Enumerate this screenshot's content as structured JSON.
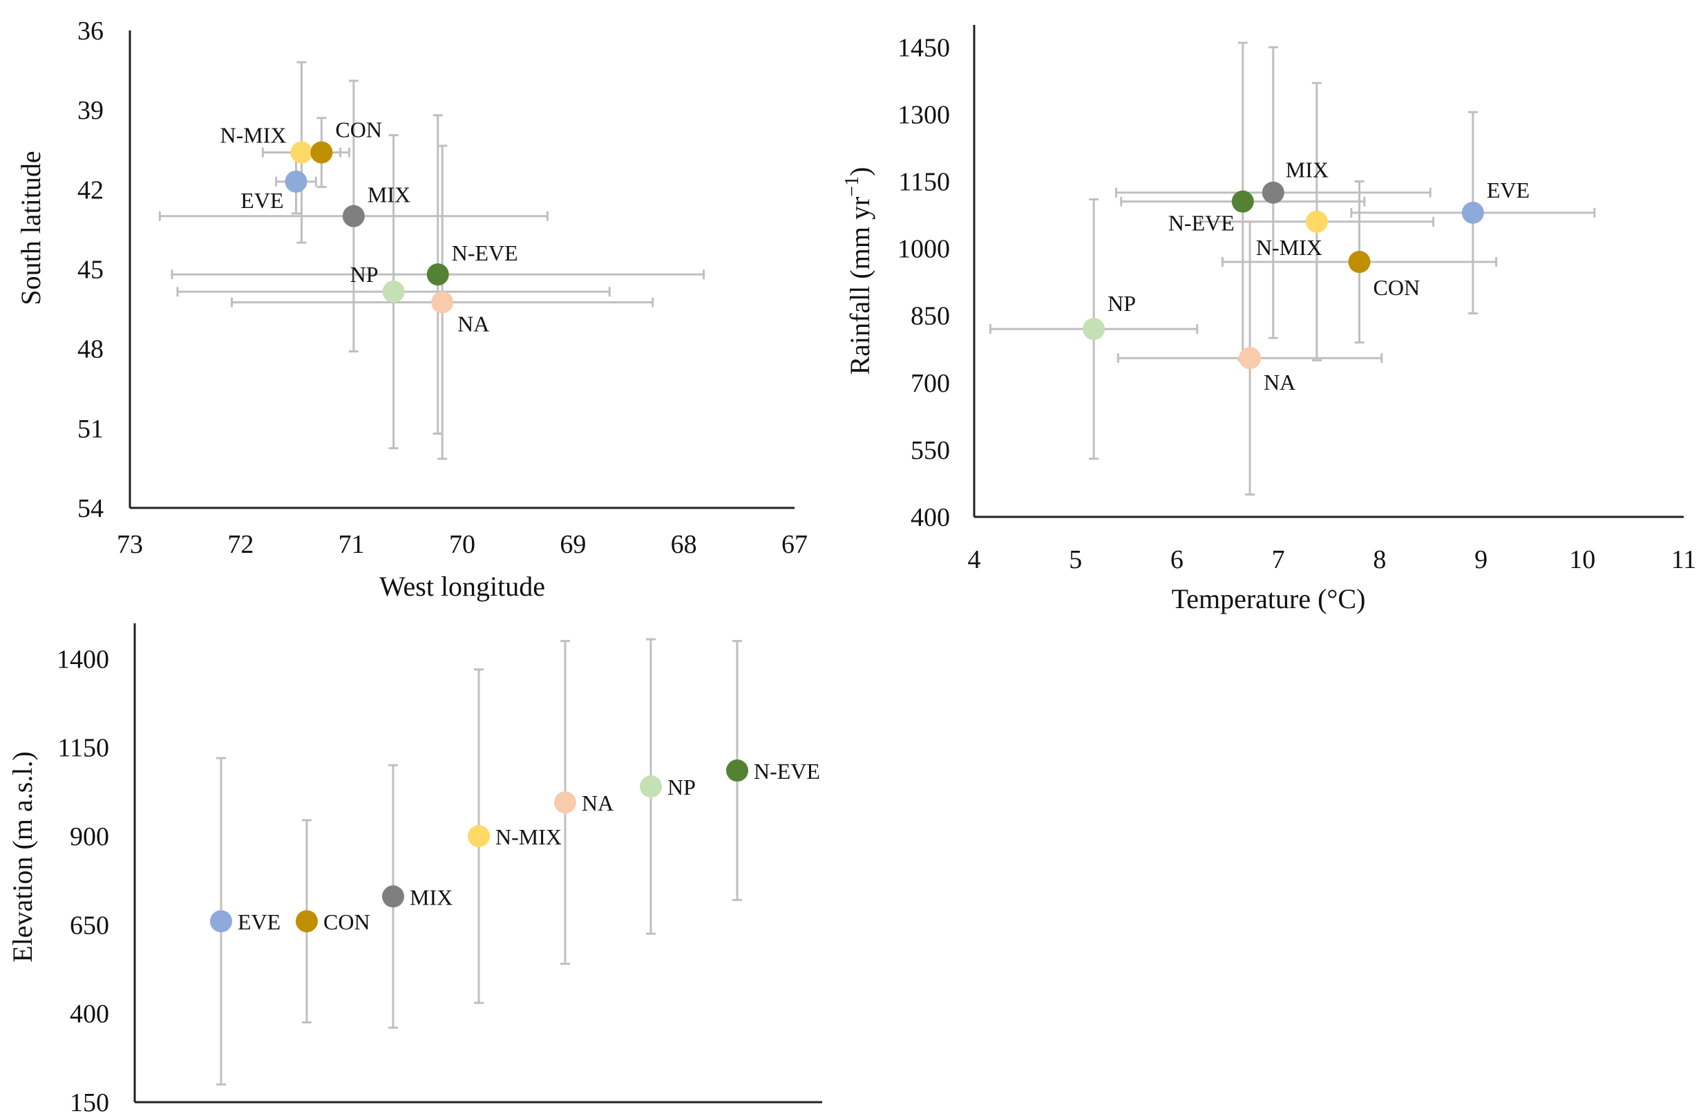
{
  "chart_data": [
    {
      "type": "scatter",
      "title": "",
      "xlabel": "West longitude",
      "ylabel": "South latitude",
      "x_reversed": true,
      "y_reversed": true,
      "xlim": [
        73,
        67
      ],
      "ylim": [
        54,
        36
      ],
      "xticks": [
        "73",
        "72",
        "71",
        "70",
        "69",
        "68",
        "67"
      ],
      "yticks": [
        "36",
        "39",
        "42",
        "45",
        "48",
        "51",
        "54"
      ],
      "points": [
        {
          "name": "N-MIX",
          "x": 71.45,
          "y": 40.6,
          "xerr": [
            0.35,
            0.35
          ],
          "yerr": [
            3.4,
            3.4
          ]
        },
        {
          "name": "CON",
          "x": 71.27,
          "y": 40.6,
          "xerr": [
            0.25,
            0.25
          ],
          "yerr": [
            1.3,
            1.3
          ]
        },
        {
          "name": "EVE",
          "x": 71.5,
          "y": 41.7,
          "xerr": [
            0.18,
            0.18
          ],
          "yerr": [
            1.2,
            1.2
          ]
        },
        {
          "name": "MIX",
          "x": 70.98,
          "y": 43.0,
          "xerr": [
            1.75,
            1.75
          ],
          "yerr": [
            5.1,
            5.1
          ]
        },
        {
          "name": "N-EVE",
          "x": 70.22,
          "y": 45.2,
          "xerr": [
            2.4,
            2.4
          ],
          "yerr": [
            6.0,
            6.0
          ]
        },
        {
          "name": "NP",
          "x": 70.62,
          "y": 45.85,
          "xerr": [
            1.95,
            1.95
          ],
          "yerr": [
            5.9,
            5.9
          ]
        },
        {
          "name": "NA",
          "x": 70.18,
          "y": 46.25,
          "xerr": [
            1.9,
            1.9
          ],
          "yerr": [
            5.9,
            5.9
          ]
        }
      ]
    },
    {
      "type": "scatter",
      "title": "",
      "xlabel": "Temperature (°C)",
      "ylabel": "Rainfall (mm yr",
      "ylabel_sup": "−1",
      "ylabel_close": ")",
      "xlim": [
        4,
        11
      ],
      "ylim": [
        400,
        1500
      ],
      "xticks": [
        "4",
        "5",
        "6",
        "7",
        "8",
        "9",
        "10",
        "11"
      ],
      "yticks": [
        "400",
        "550",
        "700",
        "850",
        "1000",
        "1150",
        "1300",
        "1450"
      ],
      "points": [
        {
          "name": "MIX",
          "x": 6.95,
          "y": 1125,
          "xerr": [
            1.55,
            1.55
          ],
          "yerr": [
            325,
            325
          ]
        },
        {
          "name": "EVE",
          "x": 8.92,
          "y": 1080,
          "xerr": [
            1.2,
            1.2
          ],
          "yerr": [
            225,
            225
          ]
        },
        {
          "name": "N-EVE",
          "x": 6.65,
          "y": 1105,
          "xerr": [
            1.2,
            1.2
          ],
          "yerr": [
            355,
            355
          ]
        },
        {
          "name": "N-MIX",
          "x": 7.38,
          "y": 1060,
          "xerr": [
            1.15,
            1.15
          ],
          "yerr": [
            310,
            310
          ]
        },
        {
          "name": "CON",
          "x": 7.8,
          "y": 970,
          "xerr": [
            1.35,
            1.35
          ],
          "yerr": [
            180,
            180
          ]
        },
        {
          "name": "NP",
          "x": 5.18,
          "y": 820,
          "xerr": [
            1.02,
            1.02
          ],
          "yerr": [
            290,
            290
          ]
        },
        {
          "name": "NA",
          "x": 6.72,
          "y": 755,
          "xerr": [
            1.3,
            1.3
          ],
          "yerr": [
            305,
            305
          ]
        }
      ]
    },
    {
      "type": "scatter",
      "title": "",
      "xlabel": "",
      "ylabel": "Elevation (m a.s.l.)",
      "xlim": [
        0,
        8
      ],
      "ylim": [
        150,
        1500
      ],
      "yticks": [
        "150",
        "400",
        "650",
        "900",
        "1150",
        "1400"
      ],
      "points": [
        {
          "name": "EVE",
          "x": 1,
          "y": 660,
          "yerr": [
            460,
            460
          ]
        },
        {
          "name": "CON",
          "x": 2,
          "y": 660,
          "yerr": [
            285,
            285
          ]
        },
        {
          "name": "MIX",
          "x": 3,
          "y": 730,
          "yerr": [
            370,
            370
          ]
        },
        {
          "name": "N-MIX",
          "x": 4,
          "y": 900,
          "yerr": [
            470,
            470
          ]
        },
        {
          "name": "NA",
          "x": 5,
          "y": 995,
          "yerr": [
            455,
            455
          ]
        },
        {
          "name": "NP",
          "x": 6,
          "y": 1040,
          "yerr": [
            415,
            415
          ]
        },
        {
          "name": "N-EVE",
          "x": 7,
          "y": 1085,
          "yerr": [
            365,
            365
          ]
        }
      ]
    }
  ],
  "colors": {
    "EVE": "#8eaadb",
    "CON": "#bf8f00",
    "MIX": "#7f7f7f",
    "N-MIX": "#ffd966",
    "NA": "#f8cbad",
    "NP": "#c5e0b4",
    "N-EVE": "#548235",
    "errorbar": "#bfbfbf",
    "axis": "#222222"
  }
}
